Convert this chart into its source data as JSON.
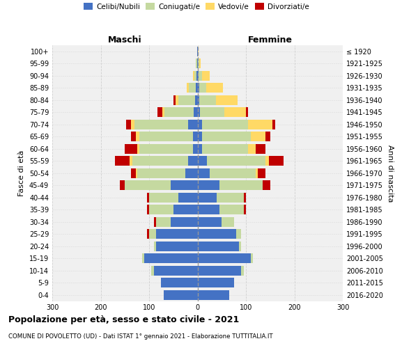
{
  "age_groups": [
    "0-4",
    "5-9",
    "10-14",
    "15-19",
    "20-24",
    "25-29",
    "30-34",
    "35-39",
    "40-44",
    "45-49",
    "50-54",
    "55-59",
    "60-64",
    "65-69",
    "70-74",
    "75-79",
    "80-84",
    "85-89",
    "90-94",
    "95-99",
    "100+"
  ],
  "birth_years": [
    "2016-2020",
    "2011-2015",
    "2006-2010",
    "2001-2005",
    "1996-2000",
    "1991-1995",
    "1986-1990",
    "1981-1985",
    "1976-1980",
    "1971-1975",
    "1966-1970",
    "1961-1965",
    "1956-1960",
    "1951-1955",
    "1946-1950",
    "1941-1945",
    "1936-1940",
    "1931-1935",
    "1926-1930",
    "1921-1925",
    "≤ 1920"
  ],
  "males": {
    "celibi": [
      70,
      75,
      90,
      110,
      85,
      85,
      55,
      50,
      40,
      55,
      25,
      20,
      10,
      10,
      20,
      8,
      5,
      3,
      2,
      1,
      1
    ],
    "coniugati": [
      0,
      0,
      5,
      5,
      5,
      15,
      30,
      50,
      60,
      95,
      100,
      115,
      110,
      110,
      110,
      60,
      35,
      15,
      5,
      2,
      0
    ],
    "vedovi": [
      0,
      0,
      0,
      0,
      0,
      0,
      0,
      0,
      0,
      0,
      3,
      5,
      5,
      8,
      8,
      5,
      5,
      5,
      2,
      0,
      0
    ],
    "divorziati": [
      0,
      0,
      0,
      0,
      0,
      5,
      5,
      5,
      5,
      10,
      10,
      30,
      25,
      10,
      10,
      10,
      5,
      0,
      0,
      0,
      0
    ]
  },
  "females": {
    "nubili": [
      65,
      75,
      90,
      110,
      85,
      80,
      50,
      45,
      40,
      45,
      25,
      20,
      10,
      10,
      10,
      5,
      3,
      3,
      2,
      1,
      1
    ],
    "coniugate": [
      0,
      0,
      5,
      5,
      5,
      10,
      25,
      50,
      55,
      90,
      95,
      120,
      95,
      100,
      95,
      50,
      35,
      15,
      8,
      2,
      0
    ],
    "vedove": [
      0,
      0,
      0,
      0,
      0,
      0,
      0,
      0,
      0,
      0,
      5,
      8,
      15,
      30,
      50,
      45,
      45,
      35,
      15,
      3,
      1
    ],
    "divorziate": [
      0,
      0,
      0,
      0,
      0,
      0,
      0,
      5,
      5,
      15,
      15,
      30,
      20,
      10,
      5,
      5,
      0,
      0,
      0,
      0,
      0
    ]
  },
  "colors": {
    "celibi": "#4472C4",
    "coniugati": "#c5d9a0",
    "vedovi": "#FFD966",
    "divorziati": "#C00000"
  },
  "xlim": 300,
  "title": "Popolazione per età, sesso e stato civile - 2021",
  "subtitle": "COMUNE DI POVOLETTO (UD) - Dati ISTAT 1° gennaio 2021 - Elaborazione TUTTITALIA.IT",
  "ylabel": "Fasce di età",
  "ylabel_right": "Anni di nascita",
  "xlabel_left": "Maschi",
  "xlabel_right": "Femmine",
  "background_color": "#f0f0f0",
  "grid_color": "#cccccc"
}
